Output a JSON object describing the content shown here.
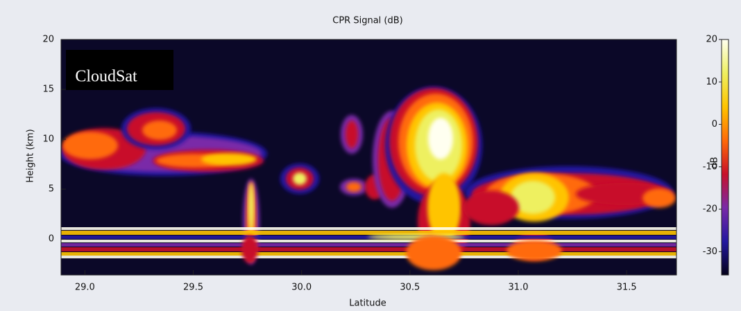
{
  "chart_data": {
    "type": "heatmap",
    "title": "CPR Signal (dB)",
    "xlabel": "Latitude",
    "ylabel": "Height (km)",
    "logo": "CloudSat",
    "xlim": [
      28.89,
      31.73
    ],
    "xticks": [
      {
        "value": 29.0,
        "label": "29.0"
      },
      29.5,
      {
        "value": 30.0,
        "label": "30.0"
      },
      30.5,
      {
        "value": 31.0,
        "label": "31.0"
      },
      31.5
    ],
    "ylim": [
      -3.6,
      20
    ],
    "yticks": [
      0,
      5,
      10,
      15,
      20
    ],
    "colorbar": {
      "label": "dB",
      "lim": [
        -35.5,
        20
      ],
      "ticks": [
        -30,
        -20,
        -10,
        0,
        10,
        20
      ],
      "colors": [
        "#05021a",
        "#2418a0",
        "#7a2aa8",
        "#c8102a",
        "#ff6a08",
        "#ffc400",
        "#eef060",
        "#fffff0"
      ]
    }
  }
}
